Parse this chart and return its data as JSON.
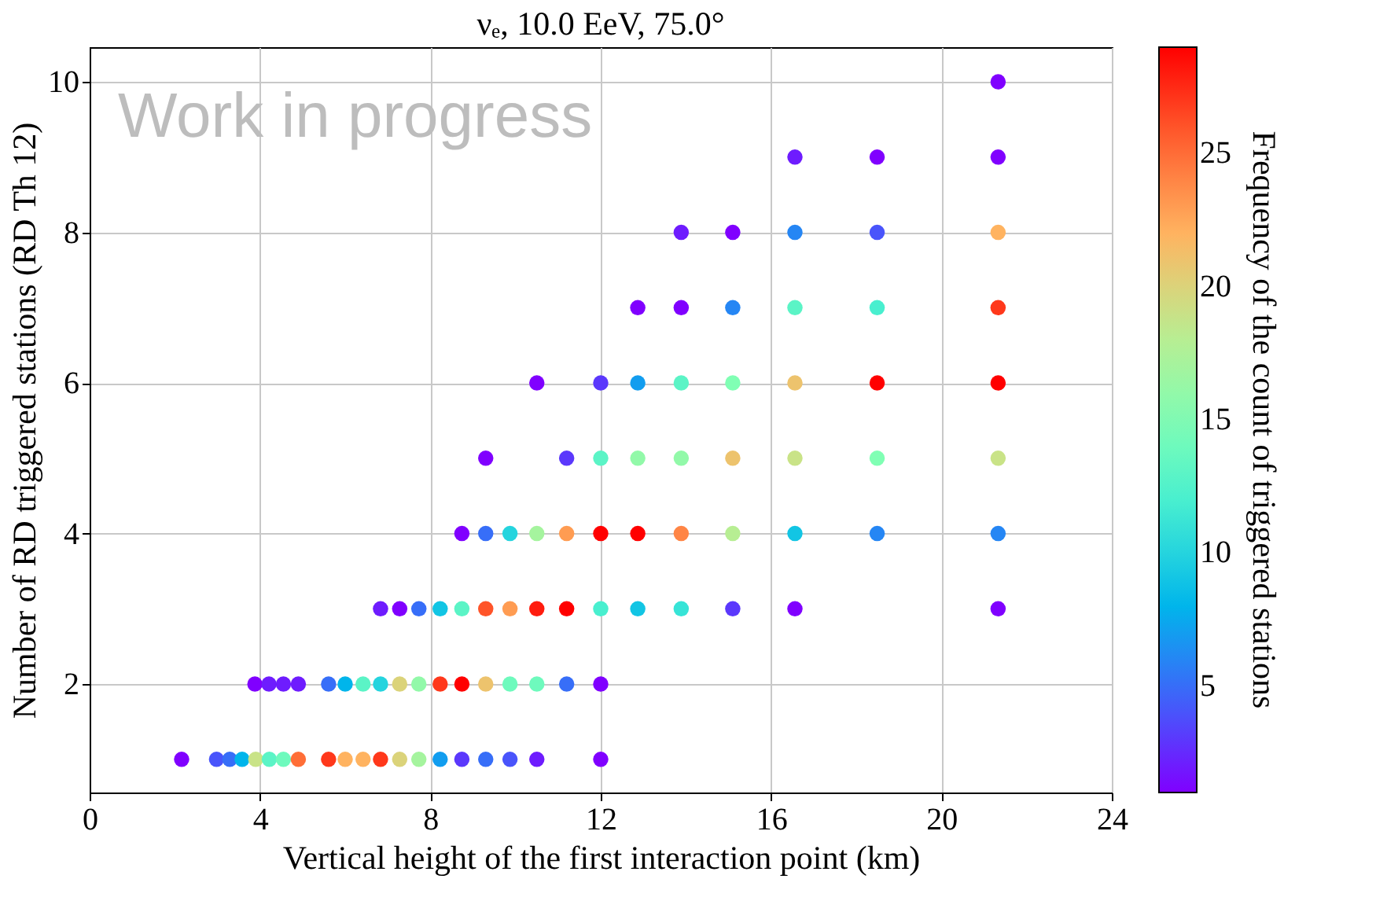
{
  "chart_data": {
    "type": "scatter",
    "title": "νₑ, 10.0 EeV, 75.0°",
    "xlabel": "Vertical height of the first interaction point (km)",
    "ylabel": "Number of RD triggered stations (RD Th 12)",
    "clabel": "Frequency of the count of triggered stations",
    "annotations": [
      "Work in progress"
    ],
    "series": [
      {
        "x": [
          2.16,
          2.98,
          3.29,
          3.58,
          3.9,
          4.22,
          4.55,
          4.9,
          5.61,
          6.0,
          6.42,
          6.83,
          7.28,
          7.73,
          8.23,
          8.74,
          9.3,
          9.87,
          10.5,
          12.0,
          3.88,
          4.21,
          4.55,
          4.9,
          5.61,
          6.0,
          6.42,
          6.83,
          7.28,
          7.73,
          8.23,
          8.74,
          9.3,
          9.87,
          10.5,
          11.2,
          12.0,
          6.83,
          7.28,
          7.73,
          8.23,
          8.74,
          9.3,
          9.87,
          10.5,
          11.2,
          12.0,
          12.87,
          13.89,
          15.1,
          16.56,
          21.33,
          8.74,
          9.3,
          9.87,
          10.5,
          11.2,
          12.0,
          12.87,
          13.89,
          15.1,
          16.56,
          18.49,
          21.33,
          9.3,
          11.2,
          12.0,
          12.87,
          13.89,
          15.1,
          16.56,
          18.49,
          21.33,
          10.5,
          12.0,
          12.87,
          13.89,
          15.1,
          16.56,
          18.49,
          21.33,
          12.87,
          13.89,
          15.1,
          16.56,
          18.49,
          21.33,
          13.89,
          15.1,
          16.56,
          18.49,
          21.33,
          16.56,
          18.49,
          21.33,
          21.33
        ],
        "values": [
          1,
          1,
          1,
          1,
          1,
          1,
          1,
          1,
          1,
          1,
          1,
          1,
          1,
          1,
          1,
          1,
          1,
          1,
          1,
          1,
          2,
          2,
          2,
          2,
          2,
          2,
          2,
          2,
          2,
          2,
          2,
          2,
          2,
          2,
          2,
          2,
          2,
          3,
          3,
          3,
          3,
          3,
          3,
          3,
          3,
          3,
          3,
          3,
          3,
          3,
          3,
          3,
          4,
          4,
          4,
          4,
          4,
          4,
          4,
          4,
          4,
          4,
          4,
          4,
          5,
          5,
          5,
          5,
          5,
          5,
          5,
          5,
          5,
          6,
          6,
          6,
          6,
          6,
          6,
          6,
          6,
          7,
          7,
          7,
          7,
          7,
          7,
          8,
          8,
          8,
          8,
          8,
          9,
          9,
          9,
          10
        ],
        "cvalues": [
          1,
          4,
          5,
          8,
          19,
          13,
          14,
          25,
          27,
          22,
          22,
          27,
          20,
          17,
          7,
          3,
          5,
          4,
          2,
          1,
          1,
          2,
          2,
          2,
          5,
          8,
          13,
          10,
          20,
          16,
          27,
          29,
          21,
          14,
          14,
          5,
          1,
          2,
          1,
          5,
          9,
          13,
          26,
          23,
          28,
          29,
          12,
          9,
          11,
          3,
          1,
          1,
          1,
          5,
          10,
          17,
          23,
          29,
          29,
          24,
          18,
          9,
          6,
          6,
          1,
          3,
          13,
          16,
          16,
          21,
          19,
          15,
          19,
          1,
          3,
          7,
          13,
          15,
          21,
          29,
          29,
          1,
          1,
          6,
          13,
          12,
          27,
          2,
          1,
          6,
          4,
          22,
          2,
          1,
          1,
          1
        ]
      }
    ],
    "xlim": [
      0,
      24
    ],
    "xticks": [
      0,
      4,
      8,
      12,
      16,
      20,
      24
    ],
    "ylim": [
      0.56,
      10.46
    ],
    "yticks": [
      2,
      4,
      6,
      8,
      10
    ],
    "clim": [
      1,
      29
    ],
    "cticks": [
      5,
      10,
      15,
      20,
      25
    ],
    "grid": true,
    "marker": "circle"
  }
}
